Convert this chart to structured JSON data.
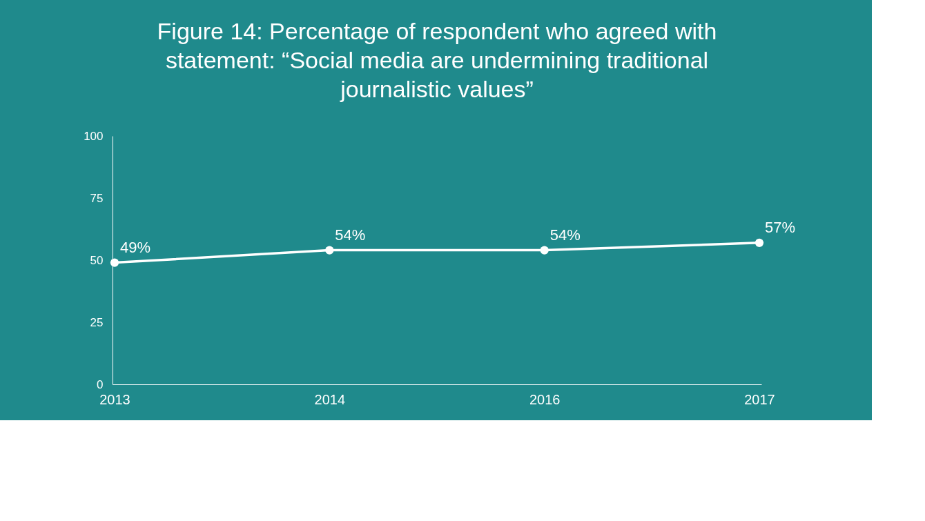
{
  "chart_data": {
    "type": "line",
    "title": [
      "Figure 14: Percentage of respondent who agreed with",
      "statement: “Social media are undermining traditional",
      "journalistic values”"
    ],
    "categories": [
      "2013",
      "2014",
      "2016",
      "2017"
    ],
    "series": [
      {
        "color": "#ffffff",
        "values": [
          49,
          54,
          54,
          57
        ],
        "value_labels": [
          "49%",
          "54%",
          "54%",
          "57%"
        ]
      }
    ],
    "ylim": [
      0,
      100
    ],
    "yticks": [
      0,
      25,
      50,
      75,
      100
    ],
    "marker": "circle",
    "line_style": "solid"
  }
}
